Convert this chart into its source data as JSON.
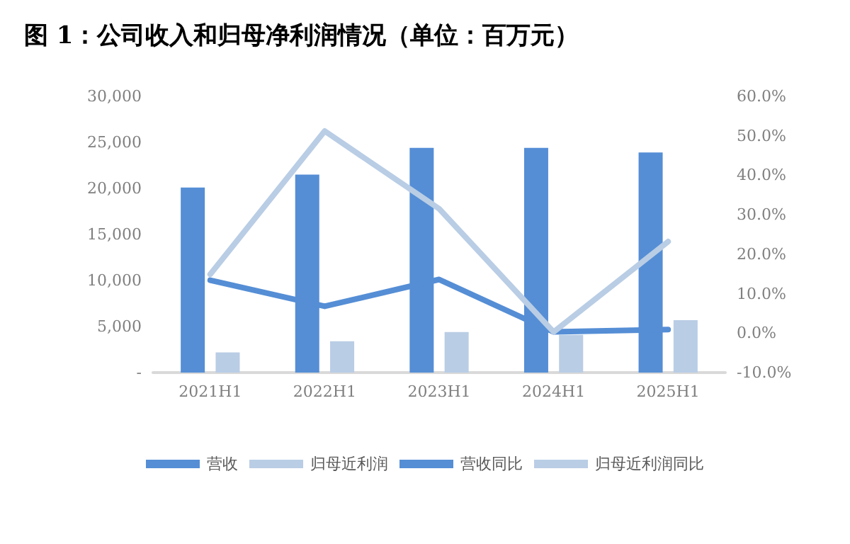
{
  "chart_data": {
    "type": "bar",
    "title": "图 1：公司收入和归母净利润情况（单位：百万元）",
    "categories": [
      "2021H1",
      "2022H1",
      "2023H1",
      "2024H1",
      "2025H1"
    ],
    "series": [
      {
        "name": "营收",
        "color": "#558ed5",
        "values": [
          20100,
          21500,
          24400,
          24400,
          23900
        ]
      },
      {
        "name": "归母近利润",
        "color": "#b9cde5",
        "values": [
          2200,
          3400,
          4400,
          4100,
          5700
        ]
      },
      {
        "name": "营收同比",
        "type": "line",
        "axis": "y2",
        "color": "#558ed5",
        "values": [
          13.4,
          6.8,
          13.6,
          0.3,
          0.9
        ]
      },
      {
        "name": "归母近利润同比",
        "type": "line",
        "axis": "y2",
        "color": "#b9cde5",
        "values": [
          14.9,
          51.2,
          31.5,
          0.3,
          23.2
        ]
      }
    ],
    "ylim": [
      0,
      30000
    ],
    "yticks": [
      {
        "value": 0,
        "label": "-"
      },
      {
        "value": 5000,
        "label": "5,000"
      },
      {
        "value": 10000,
        "label": "10,000"
      },
      {
        "value": 15000,
        "label": "15,000"
      },
      {
        "value": 20000,
        "label": "20,000"
      },
      {
        "value": 25000,
        "label": "25,000"
      },
      {
        "value": 30000,
        "label": "30,000"
      }
    ],
    "y2lim": [
      -10,
      60
    ],
    "y2ticks": [
      {
        "value": -10,
        "label": "-10.0%"
      },
      {
        "value": 0,
        "label": "0.0%"
      },
      {
        "value": 10,
        "label": "10.0%"
      },
      {
        "value": 20,
        "label": "20.0%"
      },
      {
        "value": 30,
        "label": "30.0%"
      },
      {
        "value": 40,
        "label": "40.0%"
      },
      {
        "value": 50,
        "label": "50.0%"
      },
      {
        "value": 60,
        "label": "60.0%"
      }
    ],
    "grid": false,
    "legend": "bottom",
    "marker": "none",
    "line_style": "solid"
  }
}
